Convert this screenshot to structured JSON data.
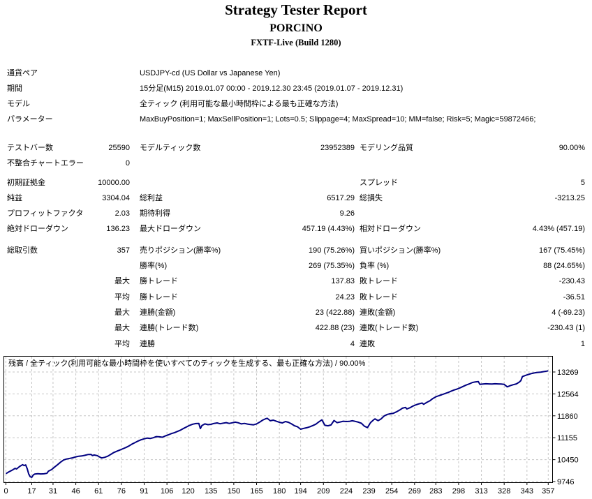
{
  "header": {
    "title": "Strategy Tester Report",
    "expert_name": "PORCINO",
    "server": "FXTF-Live (Build 1280)"
  },
  "info": [
    {
      "label": "通貨ペア",
      "value": "USDJPY-cd (US Dollar vs Japanese Yen)"
    },
    {
      "label": "期間",
      "value": "15分足(M15) 2019.01.07 00:00 - 2019.12.30 23:45 (2019.01.07 - 2019.12.31)"
    },
    {
      "label": "モデル",
      "value": "全ティック (利用可能な最小時間枠による最も正確な方法)"
    },
    {
      "label": "パラメーター",
      "value": "MaxBuyPosition=1; MaxSellPosition=1; Lots=0.5; Slippage=4; MaxSpread=10; MM=false; Risk=5; Magic=59872466;"
    }
  ],
  "stats": [
    {
      "c1l": "テストバー数",
      "c1v": "25590",
      "c2l": "モデルティック数",
      "c2v": "23952389",
      "c3l": "モデリング品質",
      "c3v": "90.00%"
    },
    {
      "c1l": "不整合チャートエラー",
      "c1v": "0",
      "c2l": "",
      "c2v": "",
      "c3l": "",
      "c3v": ""
    },
    {
      "c1l": "初期証拠金",
      "c1v": "10000.00",
      "c2l": "",
      "c2v": "",
      "c3l": "スプレッド",
      "c3v": "5"
    },
    {
      "c1l": "純益",
      "c1v": "3304.04",
      "c2l": "総利益",
      "c2v": "6517.29",
      "c3l": "総損失",
      "c3v": "-3213.25"
    },
    {
      "c1l": "プロフィットファクタ",
      "c1v": "2.03",
      "c2l": "期待利得",
      "c2v": "9.26",
      "c3l": "",
      "c3v": ""
    },
    {
      "c1l": "絶対ドローダウン",
      "c1v": "136.23",
      "c2l": "最大ドローダウン",
      "c2v": "457.19 (4.43%)",
      "c3l": "相対ドローダウン",
      "c3v": "4.43% (457.19)"
    },
    {
      "c1l": "総取引数",
      "c1v": "357",
      "c2l": "売りポジション(勝率%)",
      "c2v": "190 (75.26%)",
      "c3l": "買いポジション(勝率%)",
      "c3v": "167 (75.45%)"
    },
    {
      "c1l": "",
      "c1v": "",
      "c2l": "勝率(%)",
      "c2v": "269 (75.35%)",
      "c3l": "負率 (%)",
      "c3v": "88 (24.65%)"
    },
    {
      "c1l": "",
      "c1v": "最大",
      "c2l": "勝トレード",
      "c2v": "137.83",
      "c3l": "敗トレード",
      "c3v": "-230.43"
    },
    {
      "c1l": "",
      "c1v": "平均",
      "c2l": "勝トレード",
      "c2v": "24.23",
      "c3l": "敗トレード",
      "c3v": "-36.51"
    },
    {
      "c1l": "",
      "c1v": "最大",
      "c2l": "連勝(金額)",
      "c2v": "23 (422.88)",
      "c3l": "連敗(金額)",
      "c3v": "4 (-69.23)"
    },
    {
      "c1l": "",
      "c1v": "最大",
      "c2l": "連勝(トレード数)",
      "c2v": "422.88 (23)",
      "c3l": "連敗(トレード数)",
      "c3v": "-230.43 (1)"
    },
    {
      "c1l": "",
      "c1v": "平均",
      "c2l": "連勝",
      "c2v": "4",
      "c3l": "連敗",
      "c3v": "1"
    }
  ],
  "chart_data": {
    "type": "line",
    "title": "残高 / 全ティック(利用可能な最小時間枠を使いすべてのティックを生成する、最も正確な方法) / 90.00%",
    "title_color": "#008000",
    "xlabel": "",
    "ylabel": "",
    "xlim": [
      0,
      357
    ],
    "ylim": [
      9746,
      13269
    ],
    "x_ticks": [
      0,
      17,
      31,
      46,
      61,
      76,
      91,
      106,
      120,
      135,
      150,
      165,
      180,
      194,
      209,
      224,
      239,
      254,
      269,
      283,
      298,
      313,
      328,
      343,
      357
    ],
    "y_ticks": [
      9746,
      10450,
      11155,
      11860,
      12564,
      13269
    ],
    "grid": true,
    "grid_color": "#c6c6c6",
    "border_color": "#000000",
    "series": [
      {
        "name": "残高",
        "color": "#000080",
        "points": [
          [
            0,
            10000
          ],
          [
            2,
            10060
          ],
          [
            4,
            10110
          ],
          [
            6,
            10170
          ],
          [
            7,
            10150
          ],
          [
            9,
            10230
          ],
          [
            11,
            10290
          ],
          [
            12,
            10260
          ],
          [
            13,
            10280
          ],
          [
            14,
            10160
          ],
          [
            15,
            9990
          ],
          [
            16,
            9900
          ],
          [
            17,
            9880
          ],
          [
            18,
            9960
          ],
          [
            19,
            9985
          ],
          [
            21,
            10000
          ],
          [
            23,
            9990
          ],
          [
            25,
            9995
          ],
          [
            27,
            10010
          ],
          [
            28,
            10080
          ],
          [
            30,
            10130
          ],
          [
            32,
            10210
          ],
          [
            34,
            10290
          ],
          [
            36,
            10370
          ],
          [
            38,
            10440
          ],
          [
            40,
            10470
          ],
          [
            42,
            10490
          ],
          [
            44,
            10510
          ],
          [
            46,
            10540
          ],
          [
            48,
            10560
          ],
          [
            50,
            10570
          ],
          [
            52,
            10590
          ],
          [
            54,
            10615
          ],
          [
            56,
            10620
          ],
          [
            57,
            10580
          ],
          [
            58,
            10600
          ],
          [
            60,
            10580
          ],
          [
            62,
            10530
          ],
          [
            63,
            10505
          ],
          [
            65,
            10525
          ],
          [
            67,
            10560
          ],
          [
            69,
            10620
          ],
          [
            71,
            10680
          ],
          [
            73,
            10720
          ],
          [
            75,
            10760
          ],
          [
            77,
            10800
          ],
          [
            79,
            10840
          ],
          [
            81,
            10890
          ],
          [
            83,
            10950
          ],
          [
            85,
            11000
          ],
          [
            87,
            11050
          ],
          [
            89,
            11090
          ],
          [
            91,
            11120
          ],
          [
            93,
            11145
          ],
          [
            95,
            11130
          ],
          [
            97,
            11155
          ],
          [
            99,
            11190
          ],
          [
            101,
            11185
          ],
          [
            103,
            11170
          ],
          [
            105,
            11215
          ],
          [
            107,
            11250
          ],
          [
            109,
            11290
          ],
          [
            111,
            11320
          ],
          [
            113,
            11360
          ],
          [
            115,
            11400
          ],
          [
            117,
            11455
          ],
          [
            119,
            11505
          ],
          [
            121,
            11555
          ],
          [
            123,
            11590
          ],
          [
            125,
            11610
          ],
          [
            127,
            11615
          ],
          [
            128,
            11450
          ],
          [
            129,
            11545
          ],
          [
            131,
            11600
          ],
          [
            133,
            11575
          ],
          [
            135,
            11585
          ],
          [
            137,
            11615
          ],
          [
            139,
            11630
          ],
          [
            141,
            11605
          ],
          [
            143,
            11625
          ],
          [
            145,
            11640
          ],
          [
            147,
            11615
          ],
          [
            149,
            11635
          ],
          [
            151,
            11655
          ],
          [
            153,
            11635
          ],
          [
            155,
            11600
          ],
          [
            157,
            11615
          ],
          [
            159,
            11595
          ],
          [
            161,
            11580
          ],
          [
            163,
            11570
          ],
          [
            165,
            11600
          ],
          [
            167,
            11655
          ],
          [
            169,
            11720
          ],
          [
            171,
            11765
          ],
          [
            172,
            11780
          ],
          [
            174,
            11700
          ],
          [
            176,
            11720
          ],
          [
            178,
            11685
          ],
          [
            180,
            11650
          ],
          [
            182,
            11630
          ],
          [
            184,
            11675
          ],
          [
            186,
            11650
          ],
          [
            188,
            11600
          ],
          [
            190,
            11540
          ],
          [
            192,
            11505
          ],
          [
            194,
            11430
          ],
          [
            196,
            11455
          ],
          [
            198,
            11475
          ],
          [
            200,
            11505
          ],
          [
            202,
            11545
          ],
          [
            204,
            11590
          ],
          [
            206,
            11665
          ],
          [
            208,
            11730
          ],
          [
            210,
            11555
          ],
          [
            212,
            11540
          ],
          [
            214,
            11565
          ],
          [
            216,
            11710
          ],
          [
            218,
            11640
          ],
          [
            220,
            11660
          ],
          [
            222,
            11685
          ],
          [
            224,
            11675
          ],
          [
            226,
            11680
          ],
          [
            228,
            11700
          ],
          [
            230,
            11680
          ],
          [
            232,
            11655
          ],
          [
            234,
            11620
          ],
          [
            236,
            11525
          ],
          [
            238,
            11480
          ],
          [
            240,
            11640
          ],
          [
            242,
            11730
          ],
          [
            243,
            11760
          ],
          [
            245,
            11705
          ],
          [
            247,
            11760
          ],
          [
            249,
            11855
          ],
          [
            251,
            11905
          ],
          [
            253,
            11925
          ],
          [
            255,
            11940
          ],
          [
            257,
            11985
          ],
          [
            259,
            12040
          ],
          [
            261,
            12105
          ],
          [
            263,
            12130
          ],
          [
            264,
            12080
          ],
          [
            266,
            12120
          ],
          [
            268,
            12175
          ],
          [
            270,
            12215
          ],
          [
            272,
            12245
          ],
          [
            274,
            12270
          ],
          [
            275,
            12230
          ],
          [
            277,
            12290
          ],
          [
            279,
            12340
          ],
          [
            281,
            12415
          ],
          [
            283,
            12470
          ],
          [
            285,
            12505
          ],
          [
            287,
            12540
          ],
          [
            289,
            12575
          ],
          [
            291,
            12610
          ],
          [
            293,
            12650
          ],
          [
            295,
            12690
          ],
          [
            297,
            12720
          ],
          [
            299,
            12760
          ],
          [
            301,
            12805
          ],
          [
            303,
            12850
          ],
          [
            305,
            12885
          ],
          [
            307,
            12930
          ],
          [
            309,
            12950
          ],
          [
            311,
            12960
          ],
          [
            312,
            12870
          ],
          [
            314,
            12880
          ],
          [
            316,
            12890
          ],
          [
            318,
            12885
          ],
          [
            320,
            12880
          ],
          [
            322,
            12890
          ],
          [
            324,
            12885
          ],
          [
            326,
            12880
          ],
          [
            328,
            12870
          ],
          [
            330,
            12790
          ],
          [
            332,
            12830
          ],
          [
            334,
            12860
          ],
          [
            336,
            12885
          ],
          [
            338,
            12945
          ],
          [
            339,
            12990
          ],
          [
            340,
            13120
          ],
          [
            342,
            13160
          ],
          [
            344,
            13190
          ],
          [
            346,
            13220
          ],
          [
            348,
            13240
          ],
          [
            350,
            13255
          ],
          [
            352,
            13265
          ],
          [
            354,
            13280
          ],
          [
            356,
            13295
          ],
          [
            357,
            13304
          ]
        ]
      }
    ]
  }
}
